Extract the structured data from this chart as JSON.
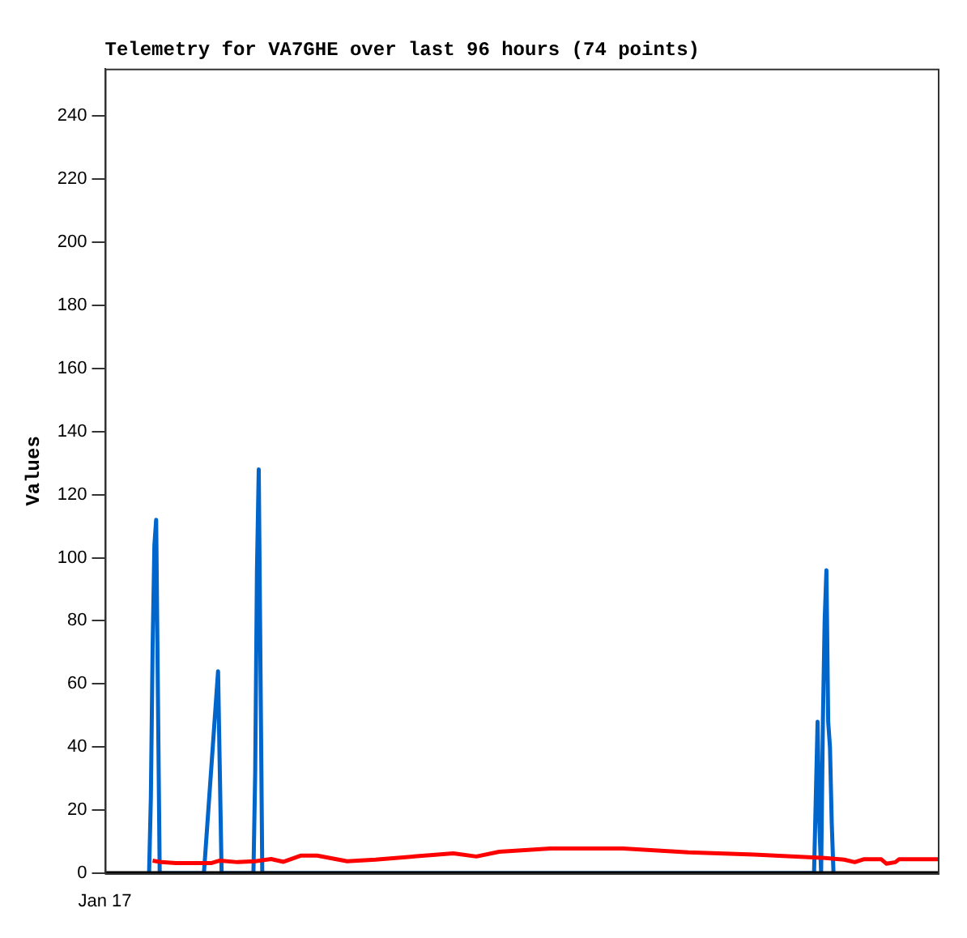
{
  "chart_data": {
    "type": "line",
    "title": "Telemetry for VA7GHE over last 96 hours (74 points)",
    "ylabel": "Values",
    "annotations": [
      "Jan 17"
    ],
    "ylim": [
      0,
      255
    ],
    "yticks": [
      0,
      20,
      40,
      60,
      80,
      100,
      120,
      140,
      160,
      180,
      200,
      220,
      240
    ],
    "grid": false,
    "legend": false,
    "marker": "none",
    "line_style": "solid",
    "categories": [
      null,
      null,
      null,
      null,
      null,
      null,
      null,
      null,
      null,
      null,
      null,
      null,
      null,
      null,
      null,
      null,
      null,
      null,
      null,
      null,
      null,
      null,
      null,
      null,
      null,
      null,
      null,
      null,
      null,
      null,
      null,
      null,
      null,
      null,
      null,
      null,
      null,
      null,
      null,
      null,
      null,
      null,
      null,
      null,
      null,
      null,
      null,
      null,
      null,
      null,
      null,
      null,
      null,
      null,
      null,
      null,
      null,
      null,
      null,
      null,
      null,
      null,
      null,
      null,
      null,
      null,
      null,
      null,
      null,
      null,
      null,
      null,
      null,
      null,
      null,
      null,
      null,
      null,
      null,
      null,
      null,
      null,
      null,
      null,
      null,
      null,
      null,
      null,
      null,
      null,
      null,
      null,
      null,
      null,
      null,
      null,
      null,
      null,
      null,
      null,
      null,
      null,
      null,
      null,
      null,
      null,
      null,
      null,
      null,
      null,
      null,
      null,
      null,
      null,
      null,
      null,
      null,
      null,
      null,
      null,
      null,
      null,
      null,
      null,
      null,
      null,
      null,
      null,
      null,
      null,
      null,
      null,
      null,
      null,
      null,
      null,
      null,
      null,
      null,
      null,
      null,
      null,
      null,
      null,
      null,
      null,
      null,
      null,
      null,
      null,
      null,
      null,
      null,
      null,
      null,
      null,
      null,
      null,
      null,
      null,
      null,
      null,
      null,
      null,
      null,
      null,
      null,
      null,
      null,
      null,
      null,
      null,
      null,
      null,
      null,
      null,
      null,
      null,
      null,
      null,
      null,
      null,
      null,
      null,
      null,
      null,
      null,
      null,
      null,
      null,
      null,
      null,
      null,
      null,
      null,
      null,
      null,
      null,
      null,
      null,
      null,
      null,
      null,
      null,
      null,
      null,
      null,
      null,
      null,
      null,
      null,
      null,
      null,
      null,
      null,
      null,
      null,
      null,
      null,
      null,
      null,
      null,
      null,
      null,
      null,
      null,
      null,
      null,
      null,
      null,
      null,
      null,
      null,
      null,
      null,
      null,
      null,
      null,
      null,
      null,
      null,
      null,
      null,
      null,
      null,
      null,
      null,
      null,
      null,
      null,
      null,
      null,
      null,
      null,
      null,
      null,
      null,
      null,
      null,
      null,
      null,
      null,
      null,
      null,
      null,
      null,
      null,
      null,
      null,
      null,
      null,
      null,
      null,
      null,
      null,
      null,
      null,
      null,
      null,
      null,
      null,
      null,
      null,
      null,
      null,
      null,
      null,
      null,
      null,
      null,
      null,
      null,
      null,
      null,
      null,
      null,
      null,
      null,
      null,
      null,
      null,
      null,
      null,
      null,
      null,
      null,
      null,
      null,
      null,
      null,
      null,
      null,
      null,
      null,
      null,
      null,
      null,
      null,
      null,
      null,
      null,
      null,
      null,
      null,
      null,
      null,
      null,
      null,
      null,
      null,
      null,
      null,
      null,
      null,
      null,
      null,
      null,
      null,
      null,
      null,
      null,
      null,
      null,
      null,
      null,
      null,
      null,
      null,
      null,
      null,
      null,
      null,
      null,
      null,
      null,
      null,
      null,
      null,
      null,
      null,
      null,
      null,
      null,
      null,
      null,
      null,
      null,
      null,
      null,
      null,
      null,
      null,
      null,
      null,
      null,
      null,
      null,
      null,
      null,
      null,
      null,
      null,
      null,
      null,
      null,
      null,
      null,
      null,
      null,
      null,
      null,
      null,
      null,
      null,
      null,
      null,
      null,
      null,
      null,
      null,
      null,
      null,
      null,
      null,
      null,
      null,
      null,
      null,
      null,
      null,
      null,
      null,
      null,
      null,
      null,
      null,
      null,
      null,
      null,
      null,
      null,
      null,
      null,
      null,
      null,
      null,
      null,
      null,
      null,
      null,
      null,
      null,
      null,
      null,
      null,
      null,
      null,
      null,
      null,
      null,
      null,
      null,
      null,
      null,
      null,
      null,
      null,
      null,
      null,
      null,
      null,
      null,
      null,
      null,
      null,
      null,
      null,
      null,
      null,
      null,
      null,
      null,
      null,
      null,
      null,
      null,
      null,
      null,
      null,
      null,
      null,
      null
    ],
    "series": [
      {
        "color": "#000000",
        "values": [
          0,
          null,
          null,
          null,
          null,
          null,
          null,
          null,
          null,
          null,
          null,
          null,
          null,
          null,
          null,
          null,
          null,
          null,
          null,
          null,
          null,
          null,
          null,
          null,
          null,
          null,
          null,
          null,
          null,
          null,
          null,
          null,
          null,
          null,
          null,
          null,
          null,
          null,
          null,
          null,
          null,
          null,
          null,
          null,
          null,
          null,
          null,
          null,
          null,
          null,
          null,
          null,
          null,
          null,
          null,
          null,
          null,
          null,
          null,
          null,
          null,
          null,
          null,
          null,
          null,
          null,
          null,
          null,
          null,
          null,
          null,
          null,
          null,
          null,
          null,
          null,
          null,
          null,
          null,
          null,
          null,
          null,
          null,
          null,
          null,
          null,
          null,
          null,
          null,
          null,
          null,
          null,
          null,
          null,
          null,
          null,
          null,
          null,
          null,
          null,
          null,
          null,
          null,
          null,
          null,
          null,
          null,
          null,
          null,
          null,
          null,
          null,
          null,
          null,
          null,
          null,
          null,
          null,
          null,
          null,
          null,
          null,
          null,
          null,
          null,
          null,
          null,
          null,
          null,
          null,
          null,
          null,
          null,
          null,
          null,
          null,
          null,
          null,
          null,
          null,
          null,
          null,
          null,
          null,
          null,
          null,
          null,
          null,
          null,
          null,
          null,
          null,
          null,
          null,
          null,
          null,
          null,
          null,
          null,
          null,
          null,
          null,
          null,
          null,
          null,
          null,
          null,
          null,
          null,
          null,
          null,
          null,
          null,
          null,
          null,
          null,
          null,
          null,
          null,
          null,
          null,
          null,
          null,
          null,
          null,
          null,
          null,
          null,
          null,
          null,
          null,
          null,
          null,
          null,
          null,
          null,
          null,
          null,
          null,
          null,
          null,
          null,
          null,
          null,
          null,
          null,
          null,
          null,
          null,
          null,
          null,
          null,
          null,
          null,
          null,
          null,
          null,
          null,
          null,
          null,
          null,
          null,
          null,
          null,
          null,
          null,
          null,
          null,
          null,
          null,
          null,
          null,
          null,
          null,
          null,
          null,
          null,
          null,
          null,
          null,
          null,
          null,
          null,
          null,
          null,
          null,
          null,
          null,
          null,
          null,
          null,
          null,
          null,
          null,
          null,
          null,
          null,
          null,
          null,
          null,
          null,
          null,
          null,
          null,
          null,
          null,
          null,
          null,
          null,
          null,
          null,
          null,
          null,
          null,
          null,
          null,
          null,
          null,
          null,
          null,
          null,
          null,
          null,
          null,
          null,
          null,
          null,
          null,
          null,
          null,
          null,
          null,
          null,
          null,
          null,
          null,
          null,
          null,
          null,
          null,
          null,
          null,
          null,
          null,
          null,
          null,
          null,
          null,
          null,
          null,
          null,
          null,
          null,
          null,
          null,
          null,
          null,
          null,
          null,
          null,
          null,
          null,
          null,
          null,
          null,
          null,
          null,
          null,
          null,
          null,
          null,
          null,
          null,
          null,
          null,
          null,
          null,
          null,
          null,
          null,
          null,
          null,
          null,
          null,
          null,
          null,
          null,
          null,
          null,
          null,
          null,
          null,
          null,
          null,
          null,
          null,
          null,
          null,
          null,
          null,
          null,
          null,
          null,
          null,
          null,
          null,
          null,
          null,
          null,
          null,
          null,
          null,
          null,
          null,
          null,
          null,
          null,
          null,
          null,
          null,
          null,
          null,
          null,
          null,
          null,
          null,
          null,
          null,
          null,
          null,
          null,
          null,
          null,
          null,
          null,
          null,
          null,
          null,
          null,
          null,
          null,
          null,
          null,
          null,
          null,
          null,
          null,
          null,
          null,
          null,
          null,
          null,
          null,
          null,
          null,
          null,
          null,
          null,
          null,
          null,
          null,
          null,
          null,
          null,
          null,
          null,
          null,
          null,
          null,
          null,
          null,
          null,
          null,
          null,
          null,
          null,
          null,
          null,
          null,
          null,
          null,
          null,
          null,
          null,
          null,
          null,
          null,
          null,
          null,
          null,
          null,
          null,
          null,
          null,
          null,
          null,
          null,
          null,
          null,
          null,
          null,
          null,
          null,
          null,
          null,
          null,
          null,
          null,
          null,
          null,
          null,
          0
        ]
      },
      {
        "color": "#ff0000",
        "values": [
          null,
          null,
          null,
          null,
          null,
          null,
          null,
          null,
          null,
          null,
          null,
          null,
          null,
          null,
          null,
          null,
          null,
          null,
          null,
          null,
          null,
          null,
          null,
          null,
          null,
          null,
          null,
          4,
          null,
          null,
          null,
          null,
          3.5,
          null,
          null,
          null,
          null,
          null,
          null,
          null,
          3.2,
          null,
          null,
          null,
          null,
          null,
          null,
          null,
          null,
          null,
          null,
          null,
          null,
          null,
          null,
          null,
          null,
          null,
          null,
          null,
          3.2,
          null,
          null,
          null,
          null,
          4,
          null,
          null,
          null,
          null,
          null,
          null,
          null,
          null,
          null,
          3.5,
          null,
          null,
          null,
          null,
          null,
          null,
          null,
          null,
          null,
          3.8,
          null,
          null,
          null,
          4.1,
          null,
          null,
          null,
          null,
          4.5,
          null,
          null,
          null,
          null,
          null,
          null,
          3.6,
          null,
          null,
          null,
          null,
          null,
          null,
          null,
          null,
          null,
          5.6,
          null,
          null,
          null,
          null,
          null,
          null,
          null,
          null,
          5.6,
          null,
          null,
          null,
          null,
          null,
          null,
          null,
          null,
          null,
          null,
          null,
          null,
          null,
          null,
          null,
          null,
          3.8,
          null,
          null,
          null,
          null,
          null,
          null,
          null,
          null,
          null,
          null,
          null,
          null,
          null,
          null,
          null,
          4.3,
          null,
          null,
          null,
          null,
          null,
          null,
          null,
          null,
          null,
          null,
          null,
          null,
          null,
          null,
          null,
          null,
          null,
          null,
          null,
          null,
          null,
          5.3,
          null,
          null,
          null,
          null,
          null,
          null,
          null,
          null,
          null,
          null,
          null,
          null,
          null,
          null,
          null,
          null,
          null,
          null,
          null,
          null,
          null,
          6.3,
          null,
          null,
          null,
          null,
          null,
          null,
          null,
          null,
          null,
          null,
          null,
          null,
          5.3,
          null,
          null,
          null,
          null,
          null,
          null,
          null,
          null,
          null,
          null,
          null,
          null,
          6.8,
          null,
          null,
          null,
          null,
          null,
          null,
          null,
          null,
          null,
          null,
          null,
          null,
          null,
          null,
          null,
          null,
          null,
          null,
          null,
          null,
          null,
          null,
          null,
          null,
          null,
          null,
          null,
          null,
          7.8,
          null,
          null,
          null,
          null,
          null,
          null,
          null,
          null,
          null,
          null,
          null,
          null,
          null,
          null,
          null,
          null,
          null,
          null,
          null,
          null,
          null,
          null,
          null,
          null,
          null,
          null,
          null,
          null,
          null,
          null,
          null,
          null,
          null,
          null,
          null,
          null,
          null,
          null,
          null,
          null,
          7.8,
          null,
          null,
          null,
          null,
          null,
          null,
          null,
          null,
          null,
          null,
          null,
          null,
          null,
          null,
          null,
          null,
          null,
          null,
          null,
          null,
          null,
          null,
          null,
          null,
          null,
          null,
          null,
          null,
          null,
          null,
          null,
          null,
          null,
          null,
          null,
          null,
          6.6,
          null,
          null,
          null,
          null,
          null,
          null,
          null,
          null,
          null,
          null,
          null,
          null,
          null,
          null,
          null,
          null,
          null,
          null,
          null,
          null,
          null,
          null,
          null,
          null,
          null,
          null,
          null,
          null,
          null,
          null,
          null,
          null,
          null,
          null,
          null,
          null,
          5.9,
          null,
          null,
          null,
          null,
          null,
          null,
          null,
          null,
          null,
          null,
          null,
          null,
          null,
          null,
          null,
          null,
          null,
          null,
          null,
          null,
          null,
          null,
          null,
          null,
          null,
          null,
          null,
          null,
          null,
          null,
          null,
          null,
          null,
          null,
          null,
          null,
          null,
          4.9,
          null,
          null,
          null,
          null,
          null,
          null,
          null,
          null,
          null,
          null,
          null,
          null,
          4.3,
          null,
          null,
          null,
          null,
          null,
          3.5,
          null,
          null,
          null,
          null,
          4.4,
          null,
          null,
          null,
          null,
          null,
          null,
          null,
          null,
          null,
          4.4,
          null,
          null,
          3,
          null,
          null,
          null,
          null,
          3.5,
          null,
          4.4,
          null,
          null,
          null,
          null,
          null,
          null,
          null,
          null,
          null,
          null,
          null,
          null,
          null,
          null,
          null,
          null,
          null,
          null,
          null,
          null,
          null,
          4.4
        ]
      },
      {
        "color": "#0066cc",
        "values": [
          null,
          null,
          null,
          null,
          null,
          null,
          null,
          null,
          null,
          null,
          null,
          null,
          null,
          null,
          null,
          null,
          null,
          null,
          null,
          null,
          null,
          null,
          null,
          null,
          null,
          0,
          24,
          72,
          104,
          112,
          56,
          0,
          null,
          null,
          null,
          null,
          null,
          null,
          null,
          null,
          null,
          null,
          null,
          null,
          null,
          null,
          null,
          null,
          null,
          null,
          null,
          null,
          null,
          null,
          null,
          null,
          0,
          8,
          16,
          24,
          32,
          40,
          48,
          56,
          64,
          32,
          0,
          null,
          null,
          null,
          null,
          null,
          null,
          null,
          null,
          null,
          null,
          null,
          null,
          null,
          null,
          null,
          null,
          null,
          0,
          32,
          96,
          128,
          64,
          0,
          null,
          null,
          null,
          null,
          null,
          null,
          null,
          null,
          null,
          null,
          null,
          null,
          null,
          null,
          null,
          null,
          null,
          null,
          null,
          null,
          null,
          null,
          null,
          null,
          null,
          null,
          null,
          null,
          null,
          null,
          null,
          null,
          null,
          null,
          null,
          null,
          null,
          null,
          null,
          null,
          null,
          null,
          null,
          null,
          null,
          null,
          null,
          null,
          null,
          null,
          null,
          null,
          null,
          null,
          null,
          null,
          null,
          null,
          null,
          null,
          null,
          null,
          null,
          null,
          null,
          null,
          null,
          null,
          null,
          null,
          null,
          null,
          null,
          null,
          null,
          null,
          null,
          null,
          null,
          null,
          null,
          null,
          null,
          null,
          null,
          null,
          null,
          null,
          null,
          null,
          null,
          null,
          null,
          null,
          null,
          null,
          null,
          null,
          null,
          null,
          null,
          null,
          null,
          null,
          null,
          null,
          null,
          null,
          null,
          null,
          null,
          null,
          null,
          null,
          null,
          null,
          null,
          null,
          null,
          null,
          null,
          null,
          null,
          null,
          null,
          null,
          null,
          null,
          null,
          null,
          null,
          null,
          null,
          null,
          null,
          null,
          null,
          null,
          null,
          null,
          null,
          null,
          null,
          null,
          null,
          null,
          null,
          null,
          null,
          null,
          null,
          null,
          null,
          null,
          null,
          null,
          null,
          null,
          null,
          null,
          null,
          null,
          null,
          null,
          null,
          null,
          null,
          null,
          null,
          null,
          null,
          null,
          null,
          null,
          null,
          null,
          null,
          null,
          null,
          null,
          null,
          null,
          null,
          null,
          null,
          null,
          null,
          null,
          null,
          null,
          null,
          null,
          null,
          null,
          null,
          null,
          null,
          null,
          null,
          null,
          null,
          null,
          null,
          null,
          null,
          null,
          null,
          null,
          null,
          null,
          null,
          null,
          null,
          null,
          null,
          null,
          null,
          null,
          null,
          null,
          null,
          null,
          null,
          null,
          null,
          null,
          null,
          null,
          null,
          null,
          null,
          null,
          null,
          null,
          null,
          null,
          null,
          null,
          null,
          null,
          null,
          null,
          null,
          null,
          null,
          null,
          null,
          null,
          null,
          null,
          null,
          null,
          null,
          null,
          null,
          null,
          null,
          null,
          null,
          null,
          null,
          null,
          null,
          null,
          null,
          null,
          null,
          null,
          null,
          null,
          null,
          null,
          null,
          null,
          null,
          null,
          null,
          null,
          null,
          null,
          null,
          null,
          null,
          null,
          null,
          null,
          null,
          null,
          null,
          null,
          null,
          null,
          null,
          null,
          null,
          null,
          null,
          null,
          null,
          null,
          null,
          null,
          null,
          null,
          null,
          null,
          null,
          null,
          null,
          null,
          null,
          0,
          24,
          48,
          16,
          0,
          48,
          80,
          96,
          48,
          40,
          16,
          0,
          null,
          null,
          null,
          null,
          null,
          null,
          null,
          null,
          null,
          null,
          null,
          null,
          null,
          null,
          null,
          null,
          null,
          null,
          null,
          null,
          null,
          null,
          null,
          null,
          null,
          null,
          null,
          null,
          null,
          null,
          null,
          null,
          null,
          null,
          null,
          null,
          null,
          null,
          null,
          null,
          null,
          null,
          null,
          null,
          null,
          null,
          null,
          null,
          null,
          null,
          null,
          null,
          null,
          null,
          null,
          null,
          null,
          null,
          null
        ]
      }
    ]
  }
}
